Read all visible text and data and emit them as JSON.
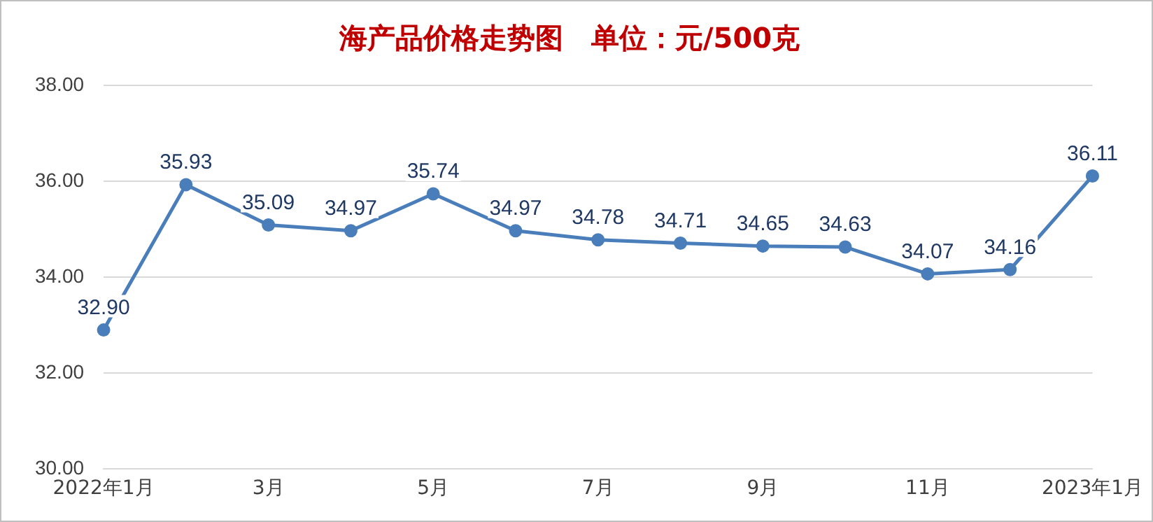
{
  "chart_data": {
    "type": "line",
    "title": "海产品价格走势图　单位：元/500克",
    "categories": [
      "2022年1月",
      null,
      "3月",
      null,
      "5月",
      null,
      "7月",
      null,
      "9月",
      null,
      "11月",
      null,
      "2023年1月"
    ],
    "series": [
      {
        "color": "#4a7ebb",
        "values": [
          32.9,
          35.93,
          35.09,
          34.97,
          35.74,
          34.97,
          34.78,
          34.71,
          34.65,
          34.63,
          34.07,
          34.16,
          36.11
        ],
        "value_labels": [
          "32.90",
          "35.93",
          "35.09",
          "34.97",
          "35.74",
          "34.97",
          "34.78",
          "34.71",
          "34.65",
          "34.63",
          "34.07",
          "34.16",
          "36.11"
        ]
      }
    ],
    "ylim": [
      30,
      38
    ],
    "yticks": [
      {
        "value": 30,
        "label": "30.00"
      },
      {
        "value": 32,
        "label": "32.00"
      },
      {
        "value": 34,
        "label": "34.00"
      },
      {
        "value": 36,
        "label": "36.00"
      },
      {
        "value": 38,
        "label": "38.00"
      }
    ],
    "grid": "y",
    "marker": "circle",
    "line_style": "solid",
    "legend": false
  }
}
